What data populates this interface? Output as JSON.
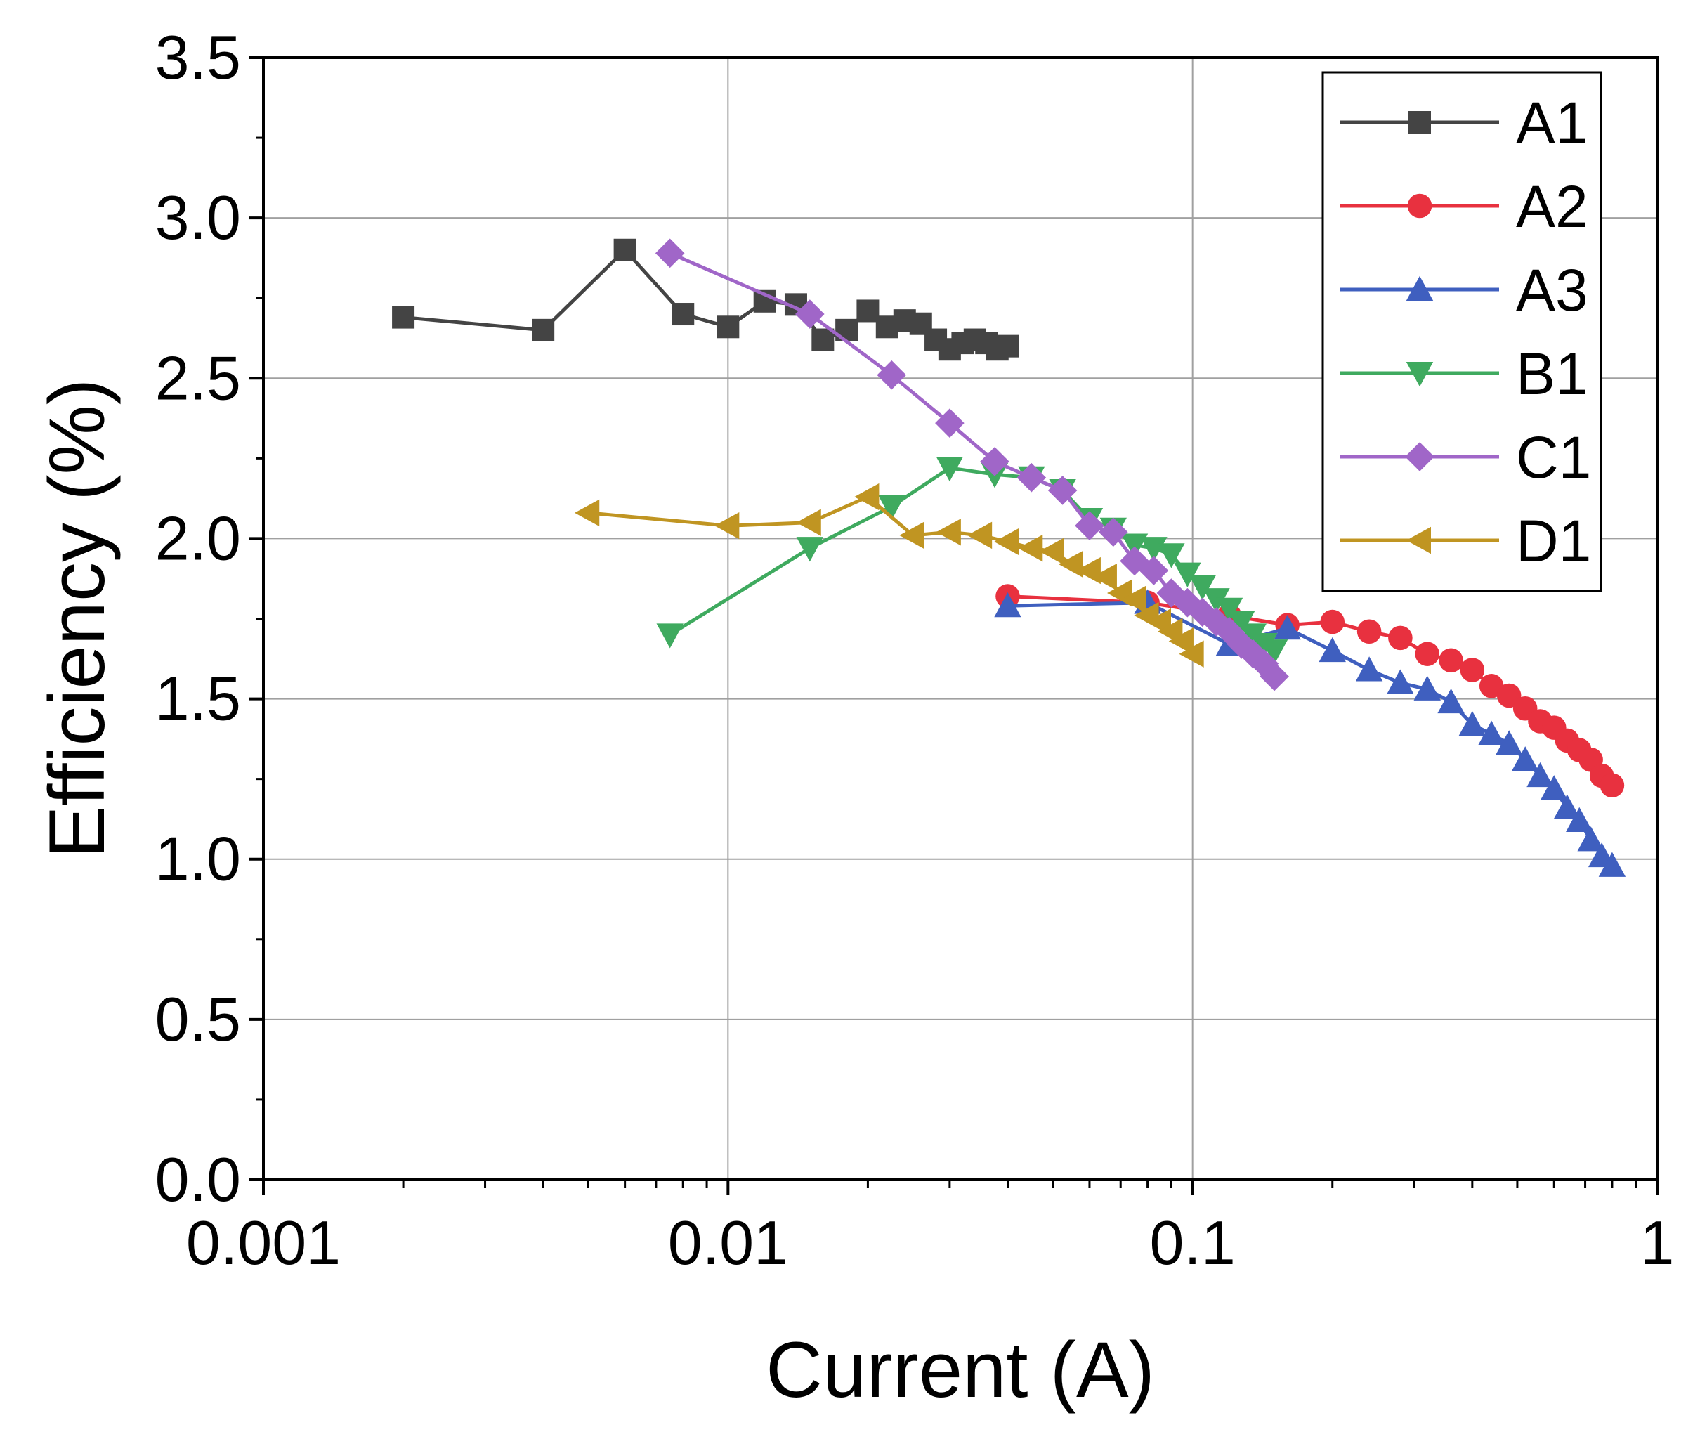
{
  "chart_data": {
    "type": "line",
    "title": "",
    "xlabel": "Current (A)",
    "ylabel": "Efficiency (%)",
    "xscale": "log",
    "xlim": [
      0.001,
      1
    ],
    "ylim": [
      0,
      3.5
    ],
    "x_tick_labels": [
      "0.001",
      "0.01",
      "0.1",
      "1"
    ],
    "y_tick_labels": [
      "0.0",
      "0.5",
      "1.0",
      "1.5",
      "2.0",
      "2.5",
      "3.0",
      "3.5"
    ],
    "grid": true,
    "legend_position": "top-right",
    "series": [
      {
        "name": "A1",
        "color": "#444444",
        "marker": "square",
        "x": [
          0.002,
          0.004,
          0.006,
          0.008,
          0.01,
          0.012,
          0.014,
          0.016,
          0.018,
          0.02,
          0.022,
          0.024,
          0.026,
          0.028,
          0.03,
          0.032,
          0.034,
          0.036,
          0.038,
          0.04
        ],
        "y": [
          2.69,
          2.65,
          2.9,
          2.7,
          2.66,
          2.74,
          2.73,
          2.62,
          2.65,
          2.71,
          2.66,
          2.68,
          2.67,
          2.62,
          2.59,
          2.61,
          2.62,
          2.61,
          2.59,
          2.6
        ]
      },
      {
        "name": "A2",
        "color": "#e8313f",
        "marker": "circle",
        "x": [
          0.04,
          0.08,
          0.12,
          0.16,
          0.2,
          0.24,
          0.28,
          0.32,
          0.36,
          0.4,
          0.44,
          0.48,
          0.52,
          0.56,
          0.6,
          0.64,
          0.68,
          0.72,
          0.76,
          0.8
        ],
        "y": [
          1.82,
          1.8,
          1.76,
          1.73,
          1.74,
          1.71,
          1.69,
          1.64,
          1.62,
          1.59,
          1.54,
          1.51,
          1.47,
          1.43,
          1.41,
          1.37,
          1.34,
          1.31,
          1.26,
          1.23
        ]
      },
      {
        "name": "A3",
        "color": "#3f5fbf",
        "marker": "triangle-up",
        "x": [
          0.04,
          0.08,
          0.12,
          0.16,
          0.2,
          0.24,
          0.28,
          0.32,
          0.36,
          0.4,
          0.44,
          0.48,
          0.52,
          0.56,
          0.6,
          0.64,
          0.68,
          0.72,
          0.76,
          0.8
        ],
        "y": [
          1.79,
          1.8,
          1.67,
          1.72,
          1.65,
          1.59,
          1.55,
          1.53,
          1.49,
          1.42,
          1.39,
          1.36,
          1.31,
          1.26,
          1.22,
          1.16,
          1.12,
          1.06,
          1.01,
          0.98
        ]
      },
      {
        "name": "B1",
        "color": "#3faa5f",
        "marker": "triangle-down",
        "x": [
          0.0075,
          0.015,
          0.0225,
          0.03,
          0.0375,
          0.045,
          0.0525,
          0.06,
          0.0675,
          0.075,
          0.0825,
          0.09,
          0.0975,
          0.105,
          0.1125,
          0.12,
          0.1275,
          0.135,
          0.1425,
          0.15
        ],
        "y": [
          1.7,
          1.97,
          2.1,
          2.22,
          2.2,
          2.19,
          2.15,
          2.06,
          2.03,
          1.98,
          1.97,
          1.95,
          1.89,
          1.85,
          1.81,
          1.78,
          1.74,
          1.7,
          1.67,
          1.65
        ]
      },
      {
        "name": "C1",
        "color": "#a066c8",
        "marker": "diamond",
        "x": [
          0.0075,
          0.015,
          0.0225,
          0.03,
          0.0375,
          0.045,
          0.0525,
          0.06,
          0.0675,
          0.075,
          0.0825,
          0.09,
          0.0975,
          0.105,
          0.1125,
          0.12,
          0.1275,
          0.135,
          0.1425,
          0.15
        ],
        "y": [
          2.89,
          2.7,
          2.51,
          2.36,
          2.24,
          2.19,
          2.15,
          2.04,
          2.02,
          1.93,
          1.9,
          1.83,
          1.8,
          1.77,
          1.74,
          1.71,
          1.67,
          1.64,
          1.61,
          1.57
        ]
      },
      {
        "name": "D1",
        "color": "#c09522",
        "marker": "triangle-left",
        "x": [
          0.005,
          0.01,
          0.015,
          0.02,
          0.025,
          0.03,
          0.035,
          0.04,
          0.045,
          0.05,
          0.055,
          0.06,
          0.065,
          0.07,
          0.075,
          0.08,
          0.085,
          0.09,
          0.095,
          0.1
        ],
        "y": [
          2.08,
          2.04,
          2.05,
          2.13,
          2.01,
          2.02,
          2.01,
          1.99,
          1.97,
          1.96,
          1.92,
          1.9,
          1.88,
          1.83,
          1.81,
          1.76,
          1.74,
          1.71,
          1.68,
          1.64
        ]
      }
    ]
  }
}
